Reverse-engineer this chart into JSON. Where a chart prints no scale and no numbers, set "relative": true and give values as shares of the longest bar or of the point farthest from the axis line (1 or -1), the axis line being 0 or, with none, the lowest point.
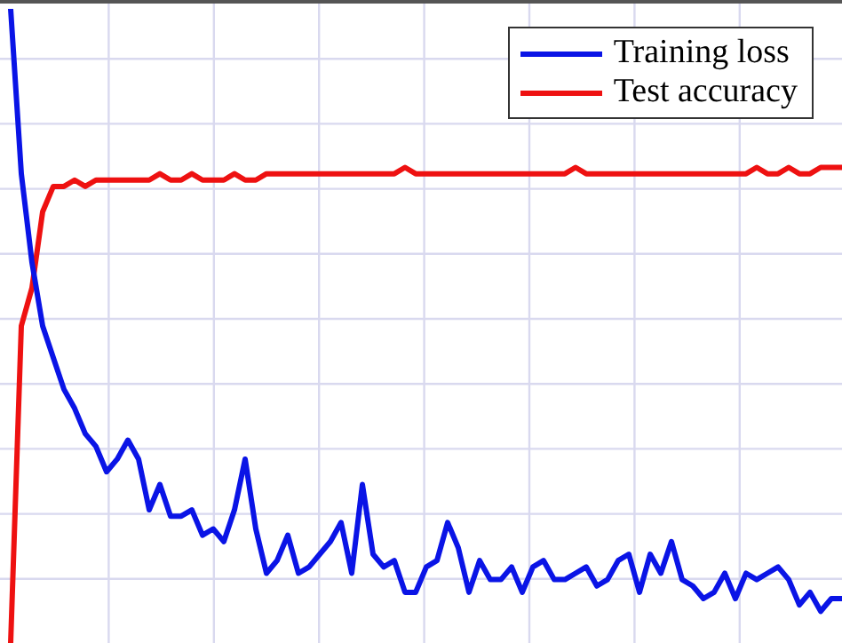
{
  "chart_data": {
    "type": "line",
    "relative": true,
    "grid": true,
    "legend": "top right",
    "marker": "none",
    "line_style": "solid",
    "categories": [
      null,
      null,
      null,
      null,
      null,
      null,
      null,
      null,
      null,
      null,
      null,
      null,
      null,
      null,
      null,
      null,
      null,
      null,
      null,
      null,
      null,
      null,
      null,
      null,
      null,
      null,
      null,
      null,
      null,
      null,
      null,
      null,
      null,
      null,
      null,
      null,
      null,
      null,
      null,
      null,
      null,
      null,
      null,
      null,
      null,
      null,
      null,
      null,
      null,
      null,
      null,
      null,
      null,
      null,
      null,
      null,
      null,
      null,
      null,
      null,
      null,
      null,
      null,
      null,
      null,
      null,
      null,
      null,
      null,
      null,
      null,
      null,
      null,
      null,
      null,
      null,
      null,
      null,
      null
    ],
    "series": [
      {
        "name": "Training loss",
        "color": "#0a14e6",
        "values": [
          1.0,
          0.74,
          0.6,
          0.5,
          0.45,
          0.4,
          0.37,
          0.33,
          0.31,
          0.27,
          0.29,
          0.32,
          0.29,
          0.21,
          0.25,
          0.2,
          0.2,
          0.21,
          0.17,
          0.18,
          0.16,
          0.21,
          0.29,
          0.18,
          0.11,
          0.13,
          0.17,
          0.11,
          0.12,
          0.14,
          0.16,
          0.19,
          0.11,
          0.25,
          0.14,
          0.12,
          0.13,
          0.08,
          0.08,
          0.12,
          0.13,
          0.19,
          0.15,
          0.08,
          0.13,
          0.1,
          0.1,
          0.12,
          0.08,
          0.12,
          0.13,
          0.1,
          0.1,
          0.11,
          0.12,
          0.09,
          0.1,
          0.13,
          0.14,
          0.08,
          0.14,
          0.11,
          0.16,
          0.1,
          0.09,
          0.07,
          0.08,
          0.11,
          0.07,
          0.11,
          0.1,
          0.11,
          0.12,
          0.1,
          0.06,
          0.08,
          0.05,
          0.07,
          0.07
        ]
      },
      {
        "name": "Test accuracy",
        "color": "#ee1111",
        "values": [
          0,
          0.5,
          0.56,
          0.68,
          0.72,
          0.72,
          0.73,
          0.72,
          0.73,
          0.73,
          0.73,
          0.73,
          0.73,
          0.73,
          0.74,
          0.73,
          0.73,
          0.74,
          0.73,
          0.73,
          0.73,
          0.74,
          0.73,
          0.73,
          0.74,
          0.74,
          0.74,
          0.74,
          0.74,
          0.74,
          0.74,
          0.74,
          0.74,
          0.74,
          0.74,
          0.74,
          0.74,
          0.75,
          0.74,
          0.74,
          0.74,
          0.74,
          0.74,
          0.74,
          0.74,
          0.74,
          0.74,
          0.74,
          0.74,
          0.74,
          0.74,
          0.74,
          0.74,
          0.75,
          0.74,
          0.74,
          0.74,
          0.74,
          0.74,
          0.74,
          0.74,
          0.74,
          0.74,
          0.74,
          0.74,
          0.74,
          0.74,
          0.74,
          0.74,
          0.74,
          0.75,
          0.74,
          0.74,
          0.75,
          0.74,
          0.74,
          0.75,
          0.75,
          0.75
        ]
      }
    ]
  }
}
